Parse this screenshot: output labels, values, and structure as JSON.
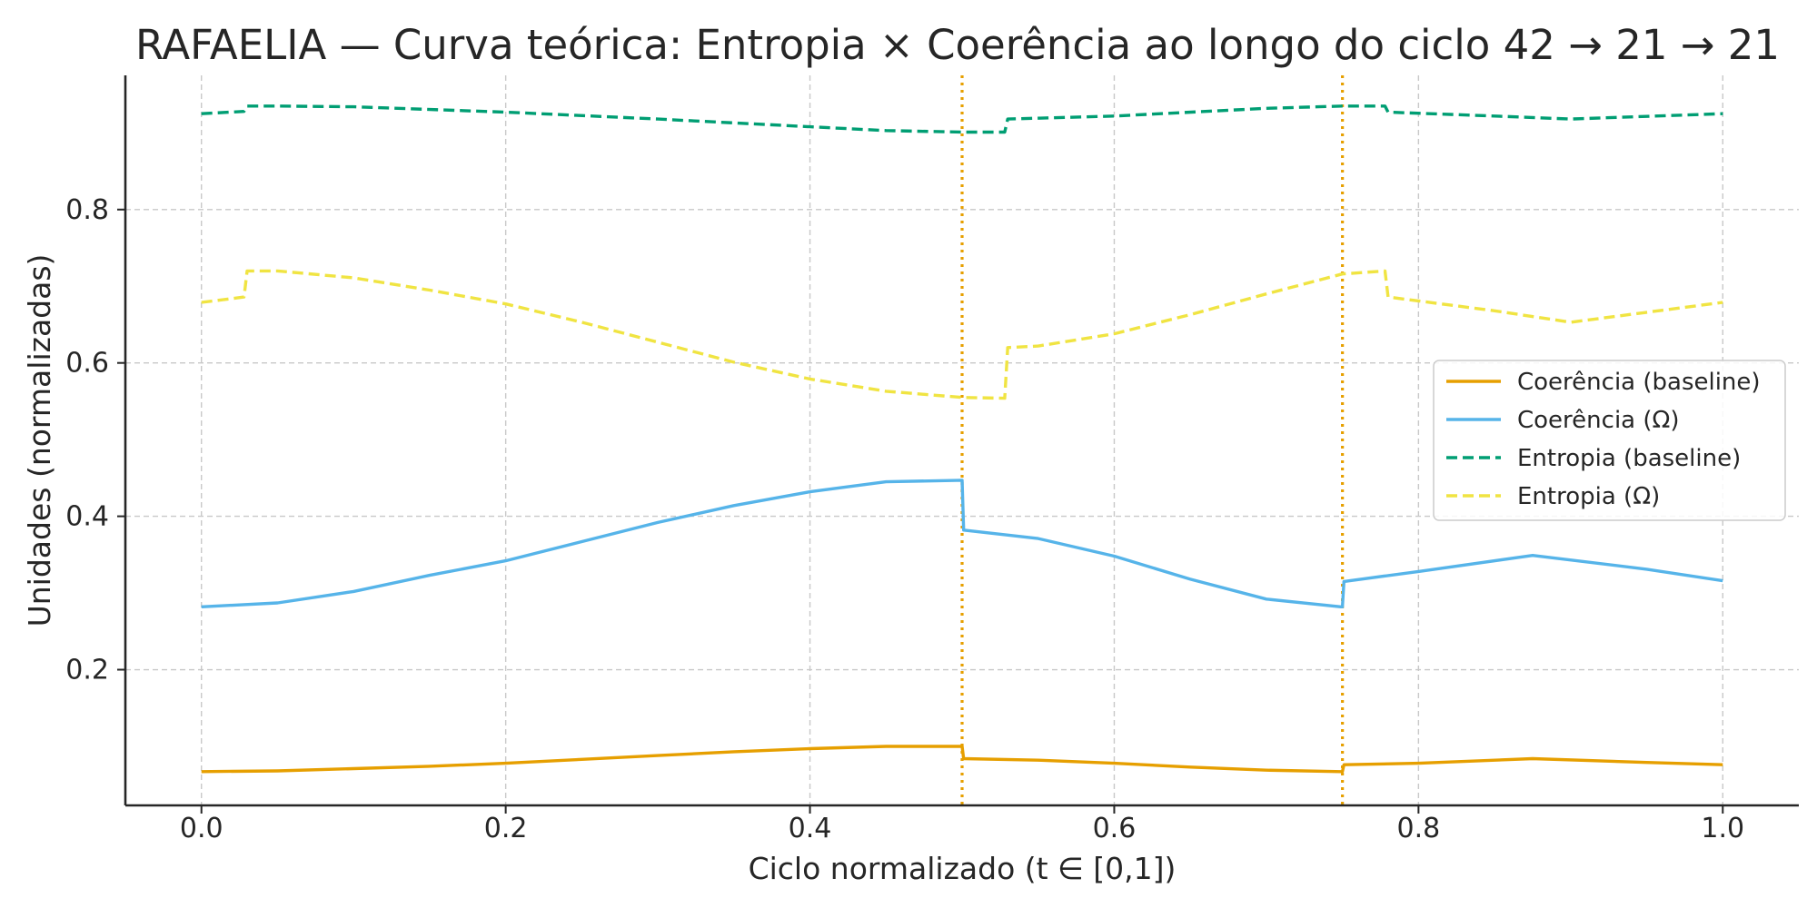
{
  "chart_data": {
    "type": "line",
    "title": "RAFAELIA — Curva teórica: Entropia × Coerência ao longo do ciclo 42 → 21 → 21",
    "xlabel": "Ciclo normalizado (t ∈ [0,1])",
    "ylabel": "Unidades (normalizadas)",
    "xlim": [
      -0.05,
      1.05
    ],
    "ylim": [
      0.023,
      0.975
    ],
    "xticks": [
      "0.0",
      "0.2",
      "0.4",
      "0.6",
      "0.8",
      "1.0"
    ],
    "yticks": [
      "0.2",
      "0.4",
      "0.6",
      "0.8"
    ],
    "grid": true,
    "legend_position": "center-right",
    "vlines": [
      0.5,
      0.75
    ],
    "vline_color": "#E69F00",
    "series": [
      {
        "name": "Coerência (baseline)",
        "color": "#E69F00",
        "dash": "solid",
        "x": [
          0.0,
          0.05,
          0.1,
          0.15,
          0.2,
          0.25,
          0.3,
          0.35,
          0.4,
          0.45,
          0.5,
          0.501,
          0.55,
          0.6,
          0.65,
          0.7,
          0.749,
          0.75,
          0.751,
          0.8,
          0.875,
          0.95,
          1.0
        ],
        "y": [
          0.067,
          0.068,
          0.071,
          0.074,
          0.078,
          0.083,
          0.088,
          0.093,
          0.097,
          0.1,
          0.1,
          0.084,
          0.082,
          0.078,
          0.073,
          0.069,
          0.067,
          0.067,
          0.076,
          0.078,
          0.084,
          0.079,
          0.076
        ]
      },
      {
        "name": "Coerência (Ω)",
        "color": "#56B4E9",
        "dash": "solid",
        "x": [
          0.0,
          0.05,
          0.1,
          0.15,
          0.2,
          0.25,
          0.3,
          0.35,
          0.4,
          0.45,
          0.5,
          0.501,
          0.55,
          0.6,
          0.65,
          0.7,
          0.749,
          0.75,
          0.751,
          0.8,
          0.875,
          0.95,
          1.0
        ],
        "y": [
          0.282,
          0.287,
          0.302,
          0.323,
          0.342,
          0.367,
          0.392,
          0.414,
          0.432,
          0.445,
          0.447,
          0.382,
          0.371,
          0.348,
          0.318,
          0.292,
          0.282,
          0.282,
          0.315,
          0.328,
          0.349,
          0.331,
          0.316
        ]
      },
      {
        "name": "Entropia (baseline)",
        "color": "#009E73",
        "dash": "dashed",
        "x": [
          0.0,
          0.028,
          0.03,
          0.05,
          0.1,
          0.2,
          0.3,
          0.4,
          0.45,
          0.5,
          0.528,
          0.53,
          0.6,
          0.7,
          0.75,
          0.778,
          0.78,
          0.85,
          0.9,
          1.0
        ],
        "y": [
          0.925,
          0.928,
          0.935,
          0.935,
          0.934,
          0.927,
          0.918,
          0.908,
          0.903,
          0.901,
          0.901,
          0.918,
          0.922,
          0.932,
          0.935,
          0.935,
          0.927,
          0.922,
          0.918,
          0.925
        ]
      },
      {
        "name": "Entropia (Ω)",
        "color": "#F0E442",
        "dash": "dashed",
        "x": [
          0.0,
          0.028,
          0.03,
          0.05,
          0.1,
          0.15,
          0.2,
          0.25,
          0.3,
          0.35,
          0.4,
          0.45,
          0.5,
          0.528,
          0.53,
          0.55,
          0.6,
          0.65,
          0.7,
          0.75,
          0.778,
          0.78,
          0.85,
          0.9,
          1.0
        ],
        "y": [
          0.679,
          0.686,
          0.72,
          0.72,
          0.711,
          0.695,
          0.677,
          0.653,
          0.627,
          0.601,
          0.579,
          0.563,
          0.555,
          0.554,
          0.62,
          0.622,
          0.638,
          0.663,
          0.69,
          0.716,
          0.72,
          0.686,
          0.668,
          0.653,
          0.679
        ]
      }
    ]
  }
}
